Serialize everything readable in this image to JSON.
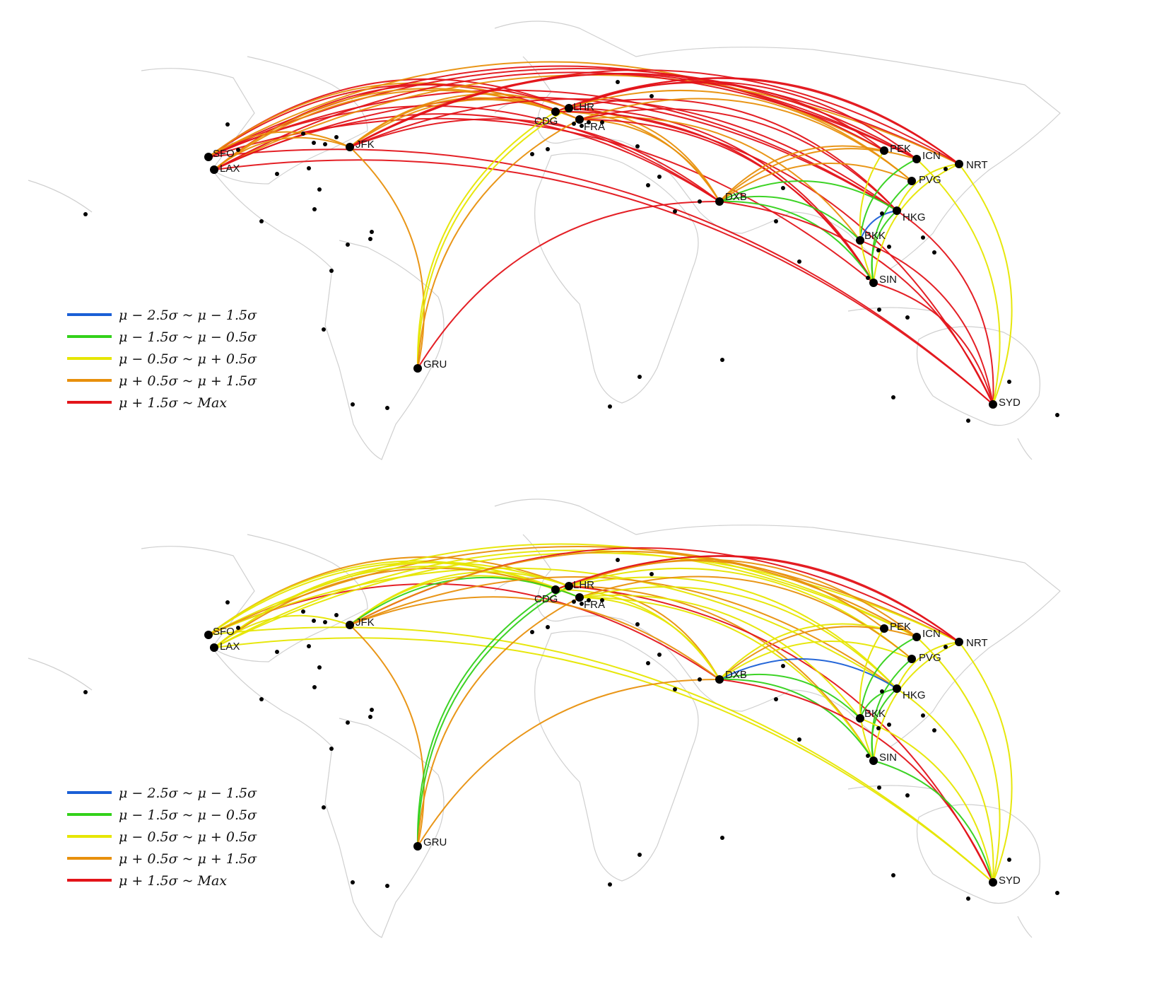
{
  "colors": {
    "blue": "#1a5fd6",
    "green": "#33d11a",
    "yellow": "#e6e600",
    "orange": "#e8900c",
    "red": "#e3141a",
    "land_border": "#cfcfcf",
    "airport_dot": "#000000"
  },
  "legend": [
    {
      "key": "blue",
      "label": "μ − 2.5σ  ~  μ − 1.5σ"
    },
    {
      "key": "green",
      "label": "μ − 1.5σ  ~  μ − 0.5σ"
    },
    {
      "key": "yellow",
      "label": "μ − 0.5σ  ~  μ + 0.5σ"
    },
    {
      "key": "orange",
      "label": "μ + 0.5σ  ~  μ + 1.5σ"
    },
    {
      "key": "red",
      "label": "μ + 1.5σ  ~  Max"
    }
  ],
  "airports": [
    "SFO",
    "LAX",
    "JFK",
    "GRU",
    "CDG",
    "LHR",
    "FRA",
    "DXB",
    "PEK",
    "ICN",
    "NRT",
    "PVG",
    "HKG",
    "BKK",
    "SIN",
    "SYD"
  ],
  "panels": [
    {
      "name": "top",
      "routes": [
        [
          "SFO",
          "LHR",
          "red"
        ],
        [
          "SFO",
          "FRA",
          "red"
        ],
        [
          "SFO",
          "CDG",
          "orange"
        ],
        [
          "SFO",
          "DXB",
          "red"
        ],
        [
          "SFO",
          "ICN",
          "red"
        ],
        [
          "SFO",
          "HKG",
          "red"
        ],
        [
          "SFO",
          "PEK",
          "orange"
        ],
        [
          "SFO",
          "NRT",
          "red"
        ],
        [
          "SFO",
          "SYD",
          "red"
        ],
        [
          "SFO",
          "SIN",
          "red"
        ],
        [
          "LAX",
          "LHR",
          "red"
        ],
        [
          "LAX",
          "CDG",
          "orange"
        ],
        [
          "LAX",
          "FRA",
          "orange"
        ],
        [
          "LAX",
          "NRT",
          "orange"
        ],
        [
          "LAX",
          "ICN",
          "red"
        ],
        [
          "LAX",
          "HKG",
          "red"
        ],
        [
          "LAX",
          "SYD",
          "red"
        ],
        [
          "LAX",
          "DXB",
          "red"
        ],
        [
          "LAX",
          "JFK",
          "orange"
        ],
        [
          "JFK",
          "LHR",
          "orange"
        ],
        [
          "JFK",
          "CDG",
          "orange"
        ],
        [
          "JFK",
          "FRA",
          "orange"
        ],
        [
          "JFK",
          "DXB",
          "red"
        ],
        [
          "JFK",
          "GRU",
          "orange"
        ],
        [
          "JFK",
          "HKG",
          "red"
        ],
        [
          "JFK",
          "NRT",
          "red"
        ],
        [
          "JFK",
          "PEK",
          "red"
        ],
        [
          "JFK",
          "ICN",
          "red"
        ],
        [
          "JFK",
          "SFO",
          "orange"
        ],
        [
          "GRU",
          "LHR",
          "yellow"
        ],
        [
          "GRU",
          "CDG",
          "yellow"
        ],
        [
          "GRU",
          "FRA",
          "orange"
        ],
        [
          "GRU",
          "DXB",
          "red"
        ],
        [
          "LHR",
          "DXB",
          "orange"
        ],
        [
          "CDG",
          "DXB",
          "orange"
        ],
        [
          "FRA",
          "DXB",
          "orange"
        ],
        [
          "LHR",
          "SIN",
          "red"
        ],
        [
          "LHR",
          "HKG",
          "red"
        ],
        [
          "LHR",
          "PEK",
          "red"
        ],
        [
          "LHR",
          "SYD",
          "red"
        ],
        [
          "LHR",
          "NRT",
          "red"
        ],
        [
          "LHR",
          "ICN",
          "red"
        ],
        [
          "FRA",
          "SIN",
          "red"
        ],
        [
          "FRA",
          "BKK",
          "orange"
        ],
        [
          "CDG",
          "PVG",
          "orange"
        ],
        [
          "FRA",
          "PVG",
          "orange"
        ],
        [
          "CDG",
          "NRT",
          "red"
        ],
        [
          "FRA",
          "HKG",
          "red"
        ],
        [
          "CDG",
          "SIN",
          "red"
        ],
        [
          "DXB",
          "SIN",
          "green"
        ],
        [
          "DXB",
          "BKK",
          "green"
        ],
        [
          "DXB",
          "HKG",
          "green"
        ],
        [
          "DXB",
          "SYD",
          "red"
        ],
        [
          "DXB",
          "ICN",
          "orange"
        ],
        [
          "DXB",
          "PEK",
          "orange"
        ],
        [
          "DXB",
          "PVG",
          "orange"
        ],
        [
          "HKG",
          "BKK",
          "blue"
        ],
        [
          "HKG",
          "SIN",
          "green"
        ],
        [
          "PVG",
          "SIN",
          "green"
        ],
        [
          "ICN",
          "BKK",
          "green"
        ],
        [
          "NRT",
          "SIN",
          "yellow"
        ],
        [
          "NRT",
          "HKG",
          "yellow"
        ],
        [
          "PEK",
          "SIN",
          "yellow"
        ],
        [
          "SIN",
          "SYD",
          "red"
        ],
        [
          "HKG",
          "SYD",
          "red"
        ],
        [
          "NRT",
          "SYD",
          "yellow"
        ],
        [
          "BKK",
          "SYD",
          "red"
        ],
        [
          "ICN",
          "SYD",
          "yellow"
        ]
      ]
    },
    {
      "name": "bottom",
      "routes": [
        [
          "SFO",
          "LHR",
          "orange"
        ],
        [
          "SFO",
          "FRA",
          "yellow"
        ],
        [
          "SFO",
          "CDG",
          "yellow"
        ],
        [
          "SFO",
          "DXB",
          "red"
        ],
        [
          "SFO",
          "ICN",
          "yellow"
        ],
        [
          "SFO",
          "HKG",
          "yellow"
        ],
        [
          "SFO",
          "NRT",
          "orange"
        ],
        [
          "SFO",
          "SYD",
          "yellow"
        ],
        [
          "LAX",
          "LHR",
          "yellow"
        ],
        [
          "LAX",
          "CDG",
          "yellow"
        ],
        [
          "LAX",
          "FRA",
          "orange"
        ],
        [
          "LAX",
          "NRT",
          "yellow"
        ],
        [
          "LAX",
          "ICN",
          "yellow"
        ],
        [
          "LAX",
          "SYD",
          "yellow"
        ],
        [
          "LAX",
          "JFK",
          "yellow"
        ],
        [
          "JFK",
          "LHR",
          "yellow"
        ],
        [
          "JFK",
          "CDG",
          "yellow"
        ],
        [
          "JFK",
          "FRA",
          "green"
        ],
        [
          "JFK",
          "DXB",
          "orange"
        ],
        [
          "JFK",
          "GRU",
          "orange"
        ],
        [
          "JFK",
          "HKG",
          "orange"
        ],
        [
          "JFK",
          "NRT",
          "red"
        ],
        [
          "JFK",
          "ICN",
          "orange"
        ],
        [
          "GRU",
          "LHR",
          "green"
        ],
        [
          "GRU",
          "CDG",
          "green"
        ],
        [
          "GRU",
          "FRA",
          "orange"
        ],
        [
          "GRU",
          "DXB",
          "orange"
        ],
        [
          "LHR",
          "DXB",
          "orange"
        ],
        [
          "CDG",
          "DXB",
          "yellow"
        ],
        [
          "FRA",
          "DXB",
          "yellow"
        ],
        [
          "LHR",
          "SIN",
          "orange"
        ],
        [
          "LHR",
          "HKG",
          "yellow"
        ],
        [
          "LHR",
          "PEK",
          "orange"
        ],
        [
          "LHR",
          "SYD",
          "red"
        ],
        [
          "LHR",
          "NRT",
          "red"
        ],
        [
          "LHR",
          "ICN",
          "orange"
        ],
        [
          "FRA",
          "SIN",
          "yellow"
        ],
        [
          "FRA",
          "BKK",
          "yellow"
        ],
        [
          "CDG",
          "PVG",
          "yellow"
        ],
        [
          "FRA",
          "PVG",
          "orange"
        ],
        [
          "CDG",
          "NRT",
          "red"
        ],
        [
          "FRA",
          "HKG",
          "yellow"
        ],
        [
          "DXB",
          "SIN",
          "green"
        ],
        [
          "DXB",
          "BKK",
          "green"
        ],
        [
          "DXB",
          "HKG",
          "blue"
        ],
        [
          "DXB",
          "SYD",
          "red"
        ],
        [
          "DXB",
          "ICN",
          "orange"
        ],
        [
          "DXB",
          "PEK",
          "yellow"
        ],
        [
          "DXB",
          "PVG",
          "yellow"
        ],
        [
          "HKG",
          "BKK",
          "green"
        ],
        [
          "HKG",
          "SIN",
          "green"
        ],
        [
          "PVG",
          "SIN",
          "green"
        ],
        [
          "ICN",
          "BKK",
          "green"
        ],
        [
          "NRT",
          "SIN",
          "yellow"
        ],
        [
          "NRT",
          "HKG",
          "yellow"
        ],
        [
          "PEK",
          "SIN",
          "yellow"
        ],
        [
          "SIN",
          "SYD",
          "green"
        ],
        [
          "HKG",
          "SYD",
          "yellow"
        ],
        [
          "NRT",
          "SYD",
          "yellow"
        ],
        [
          "BKK",
          "SYD",
          "yellow"
        ],
        [
          "ICN",
          "SYD",
          "yellow"
        ]
      ]
    }
  ]
}
